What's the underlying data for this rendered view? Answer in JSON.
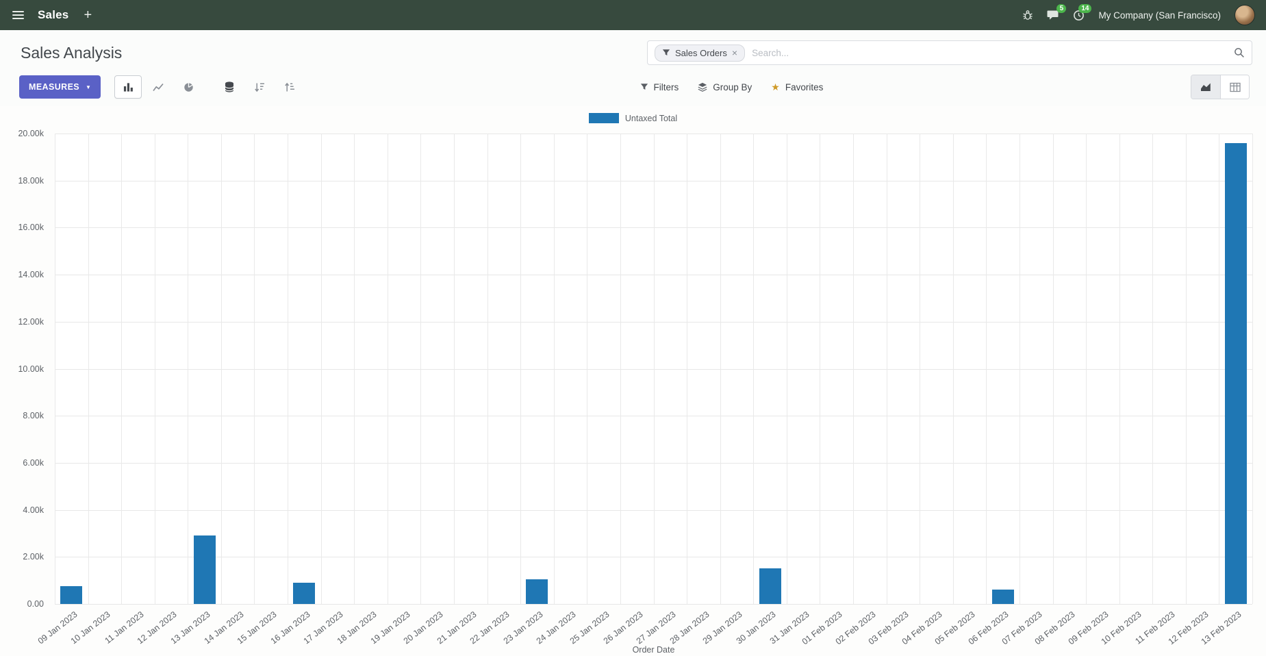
{
  "navbar": {
    "app_name": "Sales",
    "message_badge": "5",
    "activity_badge": "14",
    "company_name": "My Company (San Francisco)"
  },
  "control_panel": {
    "title": "Sales Analysis",
    "measures_button": "MEASURES",
    "search": {
      "facet_label": "Sales Orders",
      "placeholder": "Search..."
    },
    "filters_label": "Filters",
    "group_by_label": "Group By",
    "favorites_label": "Favorites"
  },
  "icons": {
    "plus": "+",
    "caret_down": "▼",
    "close": "×",
    "star": "★"
  },
  "chart_data": {
    "type": "bar",
    "title": "",
    "legend": [
      "Untaxed Total"
    ],
    "series_color": "#1f77b4",
    "xlabel": "Order Date",
    "ylabel": "",
    "ylim": [
      0,
      20000
    ],
    "ytick_step": 2000,
    "ytick_labels": [
      "0.00",
      "2.00k",
      "4.00k",
      "6.00k",
      "8.00k",
      "10.00k",
      "12.00k",
      "14.00k",
      "16.00k",
      "18.00k",
      "20.00k"
    ],
    "grid": true,
    "legend_position": "top-center",
    "categories": [
      "09 Jan 2023",
      "10 Jan 2023",
      "11 Jan 2023",
      "12 Jan 2023",
      "13 Jan 2023",
      "14 Jan 2023",
      "15 Jan 2023",
      "16 Jan 2023",
      "17 Jan 2023",
      "18 Jan 2023",
      "19 Jan 2023",
      "20 Jan 2023",
      "21 Jan 2023",
      "22 Jan 2023",
      "23 Jan 2023",
      "24 Jan 2023",
      "25 Jan 2023",
      "26 Jan 2023",
      "27 Jan 2023",
      "28 Jan 2023",
      "29 Jan 2023",
      "30 Jan 2023",
      "31 Jan 2023",
      "01 Feb 2023",
      "02 Feb 2023",
      "03 Feb 2023",
      "04 Feb 2023",
      "05 Feb 2023",
      "06 Feb 2023",
      "07 Feb 2023",
      "08 Feb 2023",
      "09 Feb 2023",
      "10 Feb 2023",
      "11 Feb 2023",
      "12 Feb 2023",
      "13 Feb 2023"
    ],
    "values": [
      750,
      0,
      0,
      0,
      2900,
      0,
      0,
      900,
      0,
      0,
      0,
      0,
      0,
      0,
      1050,
      0,
      0,
      0,
      0,
      0,
      0,
      1500,
      0,
      0,
      0,
      0,
      0,
      0,
      600,
      0,
      0,
      0,
      0,
      0,
      0,
      19600
    ]
  }
}
